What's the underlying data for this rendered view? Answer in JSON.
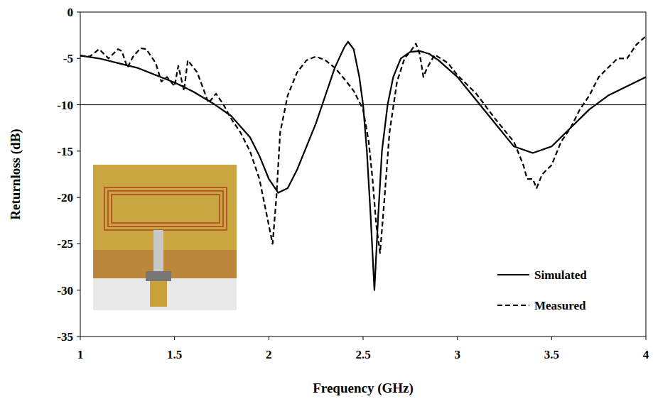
{
  "chart_data": {
    "type": "line",
    "x_label": "Frequency (GHz)",
    "y_label": "Returnloss (dB)",
    "xlim": [
      1,
      4
    ],
    "ylim": [
      -35,
      0
    ],
    "xticks": [
      1,
      1.5,
      2,
      2.5,
      3,
      3.5,
      4
    ],
    "yticks": [
      -35,
      -30,
      -25,
      -20,
      -15,
      -10,
      -5,
      0
    ],
    "hlines": [
      -10
    ],
    "legend": "bottom-right",
    "series": [
      {
        "name": "Simulated",
        "color": "#000000",
        "line_style": "solid",
        "x": [
          1.0,
          1.1,
          1.2,
          1.3,
          1.4,
          1.5,
          1.6,
          1.7,
          1.8,
          1.9,
          1.95,
          2.0,
          2.05,
          2.1,
          2.15,
          2.2,
          2.25,
          2.3,
          2.35,
          2.4,
          2.42,
          2.45,
          2.48,
          2.5,
          2.52,
          2.54,
          2.56,
          2.58,
          2.6,
          2.63,
          2.66,
          2.7,
          2.75,
          2.8,
          2.85,
          2.9,
          3.0,
          3.1,
          3.2,
          3.3,
          3.4,
          3.5,
          3.6,
          3.7,
          3.8,
          3.9,
          4.0
        ],
        "values": [
          -4.7,
          -5.0,
          -5.5,
          -6.0,
          -6.8,
          -7.6,
          -8.6,
          -9.8,
          -11.2,
          -13.5,
          -15.5,
          -18,
          -19.5,
          -19.0,
          -17,
          -14.5,
          -12,
          -9,
          -6,
          -3.8,
          -3.2,
          -4,
          -7,
          -10,
          -15,
          -22,
          -30,
          -22,
          -15,
          -10,
          -7,
          -5,
          -4.3,
          -4.2,
          -4.5,
          -5.2,
          -7,
          -9.5,
          -12,
          -14.5,
          -15.2,
          -14.5,
          -12.5,
          -10.5,
          -9,
          -8,
          -7
        ]
      },
      {
        "name": "Measured",
        "color": "#000000",
        "line_style": "dashed",
        "x": [
          1.0,
          1.05,
          1.1,
          1.15,
          1.2,
          1.22,
          1.25,
          1.28,
          1.32,
          1.35,
          1.4,
          1.43,
          1.46,
          1.5,
          1.52,
          1.55,
          1.57,
          1.62,
          1.68,
          1.72,
          1.76,
          1.8,
          1.85,
          1.9,
          1.95,
          1.98,
          2.0,
          2.02,
          2.04,
          2.06,
          2.1,
          2.15,
          2.2,
          2.25,
          2.3,
          2.35,
          2.4,
          2.45,
          2.5,
          2.53,
          2.55,
          2.57,
          2.59,
          2.61,
          2.64,
          2.68,
          2.72,
          2.76,
          2.78,
          2.8,
          2.82,
          2.84,
          2.88,
          2.95,
          3.0,
          3.1,
          3.2,
          3.3,
          3.35,
          3.37,
          3.4,
          3.42,
          3.45,
          3.5,
          3.55,
          3.6,
          3.65,
          3.7,
          3.75,
          3.8,
          3.85,
          3.9,
          3.95,
          4.0
        ],
        "values": [
          -4.7,
          -4.8,
          -4.0,
          -5.0,
          -4.0,
          -4.2,
          -6,
          -4.8,
          -3.9,
          -4.0,
          -5.5,
          -7.5,
          -7.0,
          -8.0,
          -5.8,
          -8.5,
          -5.2,
          -6.5,
          -9.8,
          -8.8,
          -10.0,
          -11.5,
          -13,
          -15,
          -18,
          -21,
          -23,
          -25,
          -20,
          -13,
          -9,
          -6.5,
          -5.2,
          -4.8,
          -5.2,
          -6,
          -7.2,
          -8.5,
          -10.5,
          -14,
          -18,
          -23,
          -26,
          -21,
          -13,
          -7.5,
          -5,
          -4,
          -3.4,
          -4.5,
          -7,
          -6,
          -4.6,
          -5.5,
          -6.8,
          -8.8,
          -11.5,
          -14,
          -16.5,
          -18,
          -18,
          -19,
          -17.5,
          -16.5,
          -14,
          -12.5,
          -10.5,
          -9,
          -7,
          -6,
          -5,
          -5,
          -3.5,
          -2.6
        ]
      }
    ]
  }
}
